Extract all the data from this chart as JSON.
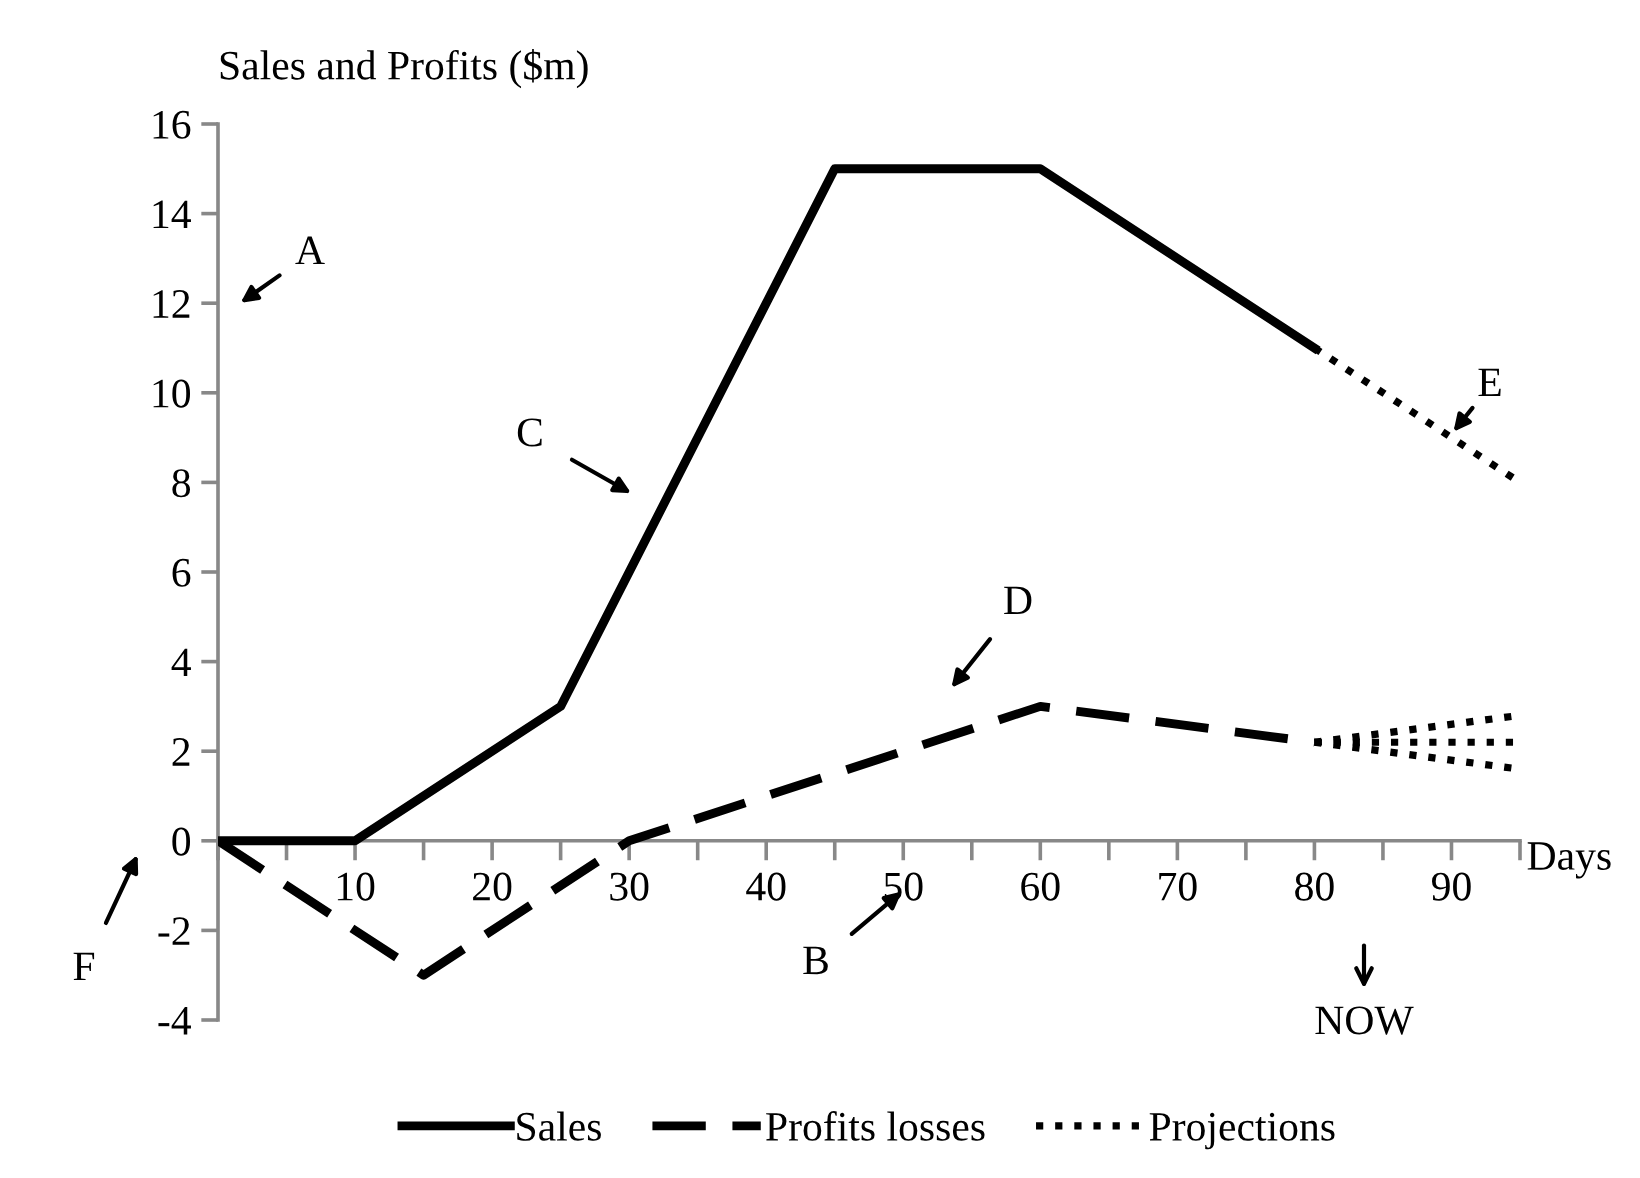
{
  "chart_data": {
    "type": "line",
    "ylabel": "Sales and Profits ($m)",
    "xlabel": "Days",
    "xlim": [
      0,
      95
    ],
    "xticks": [
      {
        "value": 0,
        "label": null
      },
      {
        "value": 5,
        "label": null
      },
      10,
      {
        "value": 15,
        "label": null
      },
      20,
      {
        "value": 25,
        "label": null
      },
      30,
      {
        "value": 35,
        "label": null
      },
      40,
      {
        "value": 45,
        "label": null
      },
      50,
      {
        "value": 55,
        "label": null
      },
      60,
      {
        "value": 65,
        "label": null
      },
      70,
      {
        "value": 75,
        "label": null
      },
      80,
      {
        "value": 85,
        "label": null
      },
      90,
      {
        "value": 95,
        "label": null
      }
    ],
    "ylim": [
      -4,
      16
    ],
    "yticks": [
      -4,
      -2,
      0,
      2,
      4,
      6,
      8,
      10,
      12,
      14,
      16
    ],
    "grid": false,
    "legend": "bottom",
    "marker": "none",
    "series": [
      {
        "name": "Sales",
        "color": "#000000",
        "line_style": "solid",
        "x": [
          0,
          10,
          25,
          45,
          60,
          80
        ],
        "values": [
          0,
          0,
          3,
          15,
          15,
          11
        ]
      },
      {
        "name": "Profits losses",
        "color": "#000000",
        "line_style": "dashed",
        "x": [
          0,
          15,
          30,
          60,
          80
        ],
        "values": [
          0,
          -3,
          0,
          3,
          2.2
        ]
      },
      {
        "name": "Projections",
        "color": "#000000",
        "line_style": "dotted",
        "x": [
          80,
          95
        ],
        "values": [
          11,
          8
        ]
      },
      {
        "color": "#000000",
        "line_style": "dotted",
        "x": [
          80,
          95
        ],
        "values": [
          2.2,
          2.8
        ]
      },
      {
        "color": "#000000",
        "line_style": "dotted",
        "x": [
          80,
          95
        ],
        "values": [
          2.2,
          2.2
        ]
      },
      {
        "color": "#000000",
        "line_style": "dotted",
        "x": [
          80,
          95
        ],
        "values": [
          2.2,
          1.6
        ]
      }
    ],
    "annotations": [
      "A",
      "C",
      "D",
      "E",
      "F",
      "B",
      "NOW"
    ]
  }
}
